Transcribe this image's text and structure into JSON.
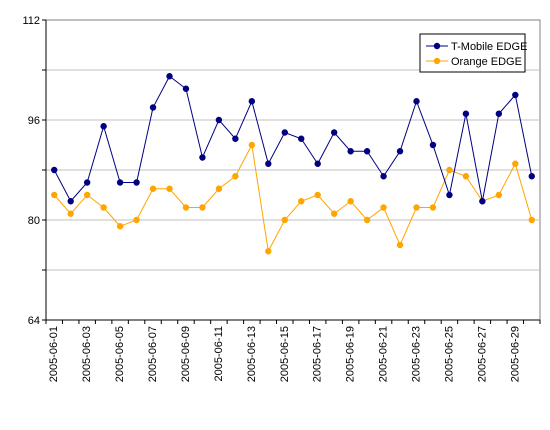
{
  "chart_data": {
    "type": "line",
    "title": "",
    "xlabel": "",
    "ylabel": "",
    "ylim": [
      64,
      112
    ],
    "y_ticks": [
      "64",
      "80",
      "96",
      "112"
    ],
    "grid": "horizontal",
    "legend_position": "top-right",
    "x": [
      "2005-06-01",
      "2005-06-02",
      "2005-06-03",
      "2005-06-04",
      "2005-06-05",
      "2005-06-06",
      "2005-06-07",
      "2005-06-08",
      "2005-06-09",
      "2005-06-10",
      "2005-06-11",
      "2005-06-12",
      "2005-06-13",
      "2005-06-14",
      "2005-06-15",
      "2005-06-16",
      "2005-06-17",
      "2005-06-18",
      "2005-06-19",
      "2005-06-20",
      "2005-06-21",
      "2005-06-22",
      "2005-06-23",
      "2005-06-24",
      "2005-06-25",
      "2005-06-26",
      "2005-06-27",
      "2005-06-28",
      "2005-06-29",
      "2005-06-30"
    ],
    "x_tick_labels": [
      "2005-06-01",
      "2005-06-03",
      "2005-06-05",
      "2005-06-07",
      "2005-06-09",
      "2005-06-11",
      "2005-06-13",
      "2005-06-15",
      "2005-06-17",
      "2005-06-19",
      "2005-06-21",
      "2005-06-23",
      "2005-06-25",
      "2005-06-27",
      "2005-06-29"
    ],
    "series": [
      {
        "name": "T-Mobile EDGE",
        "color": "#000080",
        "values": [
          88,
          83,
          86,
          95,
          86,
          86,
          98,
          103,
          101,
          90,
          96,
          93,
          99,
          89,
          94,
          93,
          89,
          94,
          91,
          91,
          87,
          91,
          99,
          92,
          84,
          97,
          83,
          97,
          100,
          87
        ]
      },
      {
        "name": "Orange EDGE",
        "color": "#FFA500",
        "values": [
          84,
          81,
          84,
          82,
          79,
          80,
          85,
          85,
          82,
          82,
          85,
          87,
          92,
          75,
          80,
          83,
          84,
          81,
          83,
          80,
          82,
          76,
          82,
          82,
          88,
          87,
          83,
          84,
          89,
          80
        ]
      }
    ]
  }
}
